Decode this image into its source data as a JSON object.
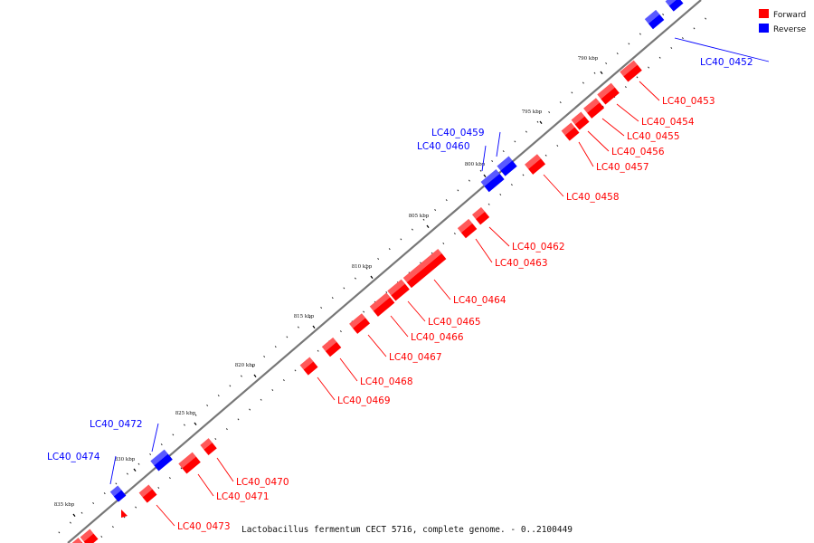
{
  "caption": "Lactobacillus fermentum CECT 5716, complete genome. - 0..2100449",
  "legend": [
    {
      "label": "Forward",
      "color": "#ff0000"
    },
    {
      "label": "Reverse",
      "color": "#0000ff"
    }
  ],
  "colors": {
    "forward": "#ff0000",
    "reverse": "#0000ff",
    "backbone": "#777777"
  },
  "ticks": [
    "790 kbp",
    "795 kbp",
    "800 kbp",
    "805 kbp",
    "810 kbp",
    "815 kbp",
    "820 kbp",
    "825 kbp",
    "830 kbp",
    "835 kbp"
  ],
  "genes": [
    {
      "name": "LC40_0452",
      "strand": "reverse"
    },
    {
      "name": "LC40_0453",
      "strand": "forward"
    },
    {
      "name": "LC40_0454",
      "strand": "forward"
    },
    {
      "name": "LC40_0455",
      "strand": "forward"
    },
    {
      "name": "LC40_0456",
      "strand": "forward"
    },
    {
      "name": "LC40_0457",
      "strand": "forward"
    },
    {
      "name": "LC40_0458",
      "strand": "forward"
    },
    {
      "name": "LC40_0459",
      "strand": "reverse"
    },
    {
      "name": "LC40_0460",
      "strand": "reverse"
    },
    {
      "name": "LC40_0462",
      "strand": "forward"
    },
    {
      "name": "LC40_0463",
      "strand": "forward"
    },
    {
      "name": "LC40_0464",
      "strand": "forward"
    },
    {
      "name": "LC40_0465",
      "strand": "forward"
    },
    {
      "name": "LC40_0466",
      "strand": "forward"
    },
    {
      "name": "LC40_0467",
      "strand": "forward"
    },
    {
      "name": "LC40_0468",
      "strand": "forward"
    },
    {
      "name": "LC40_0469",
      "strand": "forward"
    },
    {
      "name": "LC40_0470",
      "strand": "forward"
    },
    {
      "name": "LC40_0471",
      "strand": "forward"
    },
    {
      "name": "LC40_0472",
      "strand": "reverse"
    },
    {
      "name": "LC40_0473",
      "strand": "forward"
    },
    {
      "name": "LC40_0474",
      "strand": "reverse"
    }
  ]
}
